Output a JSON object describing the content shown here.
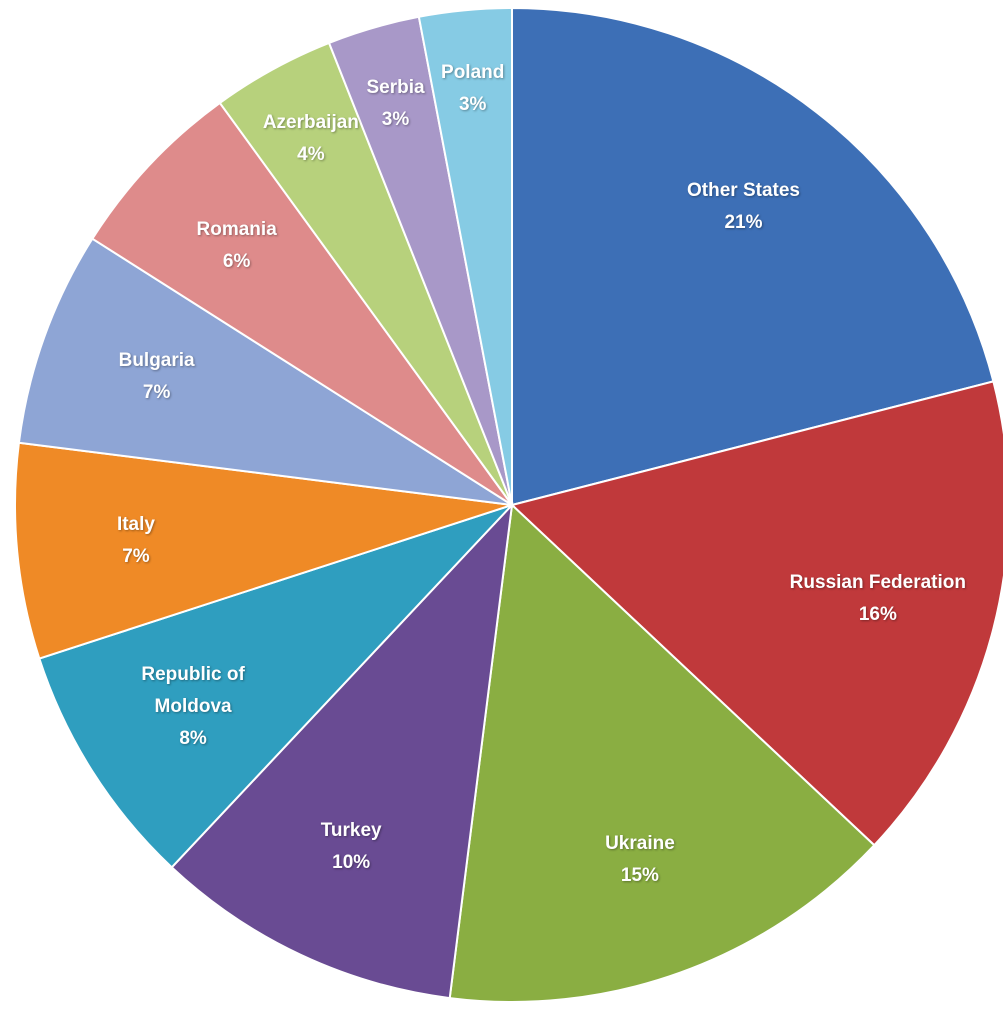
{
  "chart_data": {
    "type": "pie",
    "categories": [
      "Other States",
      "Russian Federation",
      "Ukraine",
      "Turkey",
      "Republic of Moldova",
      "Italy",
      "Bulgaria",
      "Romania",
      "Azerbaijan",
      "Serbia",
      "Poland"
    ],
    "values": [
      21,
      16,
      15,
      10,
      8,
      7,
      7,
      6,
      4,
      3,
      3
    ],
    "value_labels": [
      "21%",
      "16%",
      "15%",
      "10%",
      "8%",
      "7%",
      "7%",
      "6%",
      "4%",
      "3%",
      "3%"
    ],
    "colors": [
      "#3d6fb6",
      "#c0393b",
      "#8aae42",
      "#694b93",
      "#2f9ebf",
      "#ef8a26",
      "#8ea5d5",
      "#de8b8b",
      "#b7d17c",
      "#a898c8",
      "#86cbe4"
    ]
  }
}
